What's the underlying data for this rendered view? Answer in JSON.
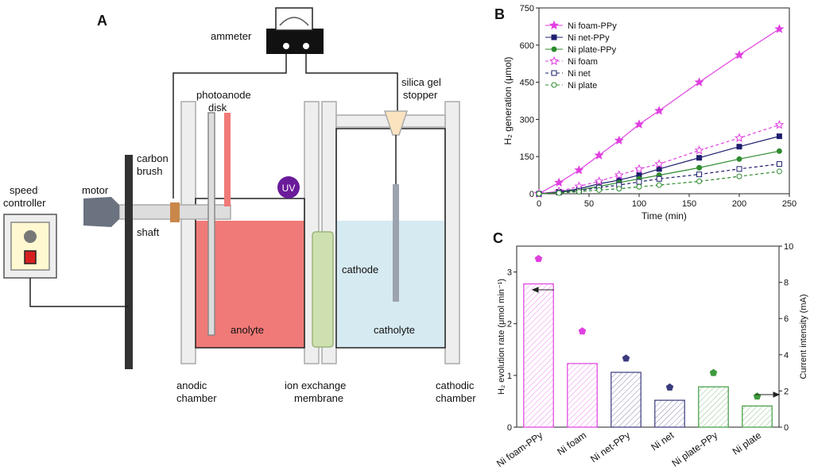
{
  "diagram": {
    "panel": "A",
    "ammeter": "ammeter",
    "photoanode_disk": [
      "photoanode",
      "disk"
    ],
    "silica_gel_stopper": [
      "silica gel",
      "stopper"
    ],
    "carbon_brush": [
      "carbon",
      "brush"
    ],
    "uv": "UV",
    "speed_controller": [
      "speed",
      "controller"
    ],
    "motor": "motor",
    "shaft": "shaft",
    "cathode": "cathode",
    "anolyte": "anolyte",
    "catholyte": "catholyte",
    "anodic_chamber": [
      "anodic",
      "chamber"
    ],
    "ion_exchange_membrane": [
      "ion exchange",
      "membrane"
    ],
    "cathodic_chamber": [
      "cathodic",
      "chamber"
    ]
  },
  "chart_data": [
    {
      "type": "line",
      "panel": "B",
      "x_label": "Time (min)",
      "y_label": "H₂ generation (μmol)",
      "x": [
        0,
        20,
        40,
        60,
        80,
        100,
        120,
        160,
        200,
        240
      ],
      "xlim": [
        0,
        250
      ],
      "xticks": [
        0,
        50,
        100,
        150,
        200,
        250
      ],
      "ylim": [
        0,
        750
      ],
      "yticks": [
        0,
        150,
        300,
        450,
        600,
        750
      ],
      "legend": "upper-left",
      "series": [
        {
          "name": "Ni foam-PPy",
          "color": "#e040e0",
          "marker": "star",
          "filled": true,
          "linestyle": "solid",
          "values": [
            0,
            45,
            95,
            155,
            215,
            280,
            335,
            450,
            560,
            665
          ]
        },
        {
          "name": "Ni net-PPy",
          "color": "#1f1f6e",
          "marker": "square",
          "filled": true,
          "linestyle": "solid",
          "values": [
            0,
            8,
            20,
            40,
            55,
            75,
            100,
            145,
            190,
            232
          ]
        },
        {
          "name": "Ni plate-PPy",
          "color": "#2e8b2e",
          "marker": "circle",
          "filled": true,
          "linestyle": "solid",
          "values": [
            0,
            5,
            15,
            30,
            45,
            60,
            75,
            105,
            140,
            172
          ]
        },
        {
          "name": "Ni foam",
          "color": "#e040e0",
          "marker": "star",
          "filled": false,
          "linestyle": "dashed",
          "values": [
            0,
            10,
            30,
            50,
            75,
            100,
            120,
            175,
            225,
            278
          ]
        },
        {
          "name": "Ni net",
          "color": "#1f1f6e",
          "marker": "square",
          "filled": false,
          "linestyle": "dashed",
          "values": [
            0,
            5,
            12,
            25,
            35,
            48,
            60,
            78,
            100,
            120
          ]
        },
        {
          "name": "Ni plate",
          "color": "#2e8b2e",
          "marker": "circle",
          "filled": false,
          "linestyle": "dashed",
          "values": [
            0,
            3,
            8,
            15,
            20,
            28,
            35,
            50,
            70,
            90
          ]
        }
      ]
    },
    {
      "type": "bar",
      "panel": "C",
      "y_label": "H₂ evolution rate (μmol min⁻¹)",
      "y2_label": "Current intensity (mA)",
      "categories": [
        "Ni foam-PPy",
        "Ni foam",
        "Ni net-PPy",
        "Ni net",
        "Ni plate-PPy",
        "Ni plate"
      ],
      "ylim": [
        0,
        3.5
      ],
      "yticks": [
        0,
        1,
        2,
        3
      ],
      "y2lim": [
        0,
        10
      ],
      "y2ticks": [
        0,
        2,
        4,
        6,
        8,
        10
      ],
      "colors": [
        "#e040e0",
        "#e040e0",
        "#3a3a7e",
        "#3a3a7e",
        "#3e9a3e",
        "#3e9a3e"
      ],
      "series": [
        {
          "kind": "bar",
          "axis": "y",
          "values": [
            2.77,
            1.23,
            1.06,
            0.52,
            0.78,
            0.41
          ]
        },
        {
          "kind": "pentagon",
          "axis": "y2",
          "values": [
            9.3,
            5.3,
            3.8,
            2.2,
            3.0,
            1.7
          ]
        }
      ]
    }
  ]
}
